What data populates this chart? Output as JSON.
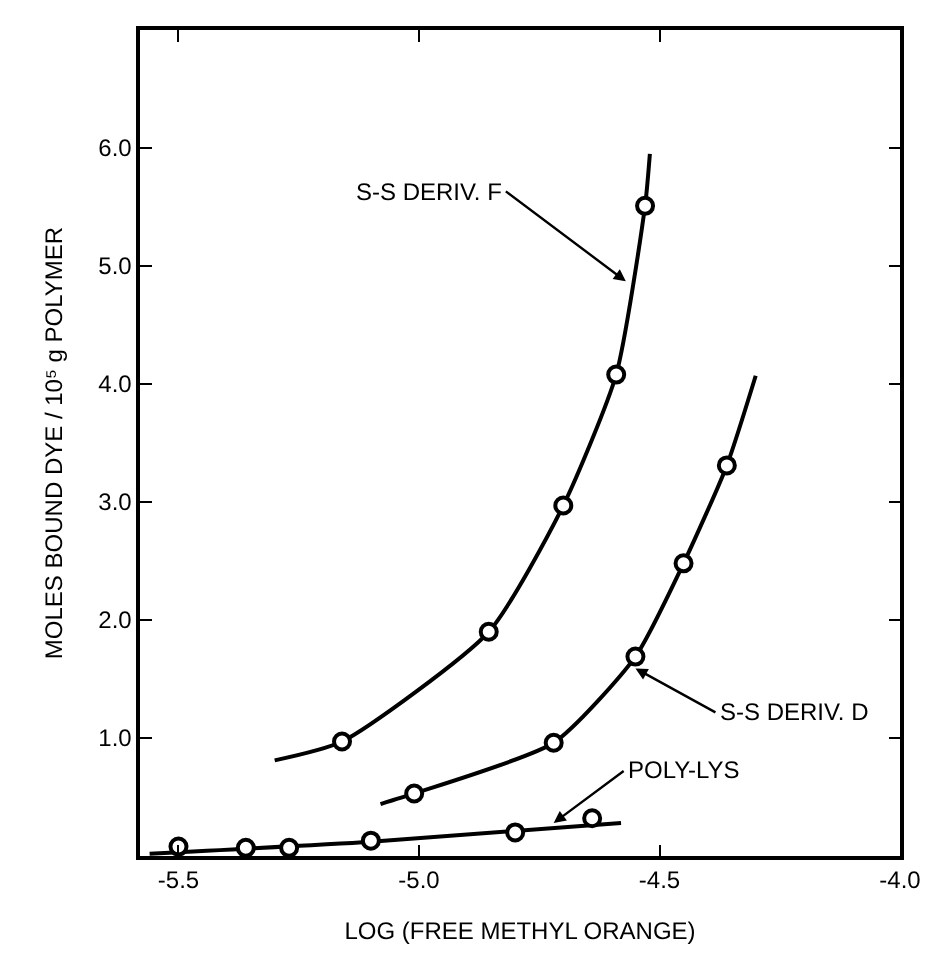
{
  "chart_data": {
    "type": "scatter",
    "xlabel": "LOG (FREE METHYL ORANGE)",
    "ylabel": "MOLES BOUND DYE / 10⁵ g POLYMER",
    "xlim": [
      -5.58,
      -4.0
    ],
    "xticks": [
      -5.5,
      {
        "value": -5.0,
        "label": "-5.0"
      },
      -4.5,
      {
        "value": -4.0,
        "label": "-4.0"
      }
    ],
    "ylim": [
      0,
      7.0
    ],
    "yticks": [
      {
        "value": 1,
        "label": "1.0"
      },
      {
        "value": 2,
        "label": "2.0"
      },
      {
        "value": 3,
        "label": "3.0"
      },
      {
        "value": 4,
        "label": "4.0"
      },
      {
        "value": 5,
        "label": "5.0"
      },
      {
        "value": 6,
        "label": "6.0"
      }
    ],
    "marker": "circle",
    "line_style": "solid",
    "series": [
      {
        "type": "line",
        "marker": "none",
        "color": "#000000",
        "x": [
          -5.3,
          -5.16,
          -4.855,
          -4.7,
          -4.59,
          -4.53,
          -4.52
        ],
        "values": [
          0.81,
          0.97,
          1.9,
          2.97,
          4.08,
          5.51,
          5.95
        ]
      },
      {
        "color": "#000000",
        "x": [
          -5.16,
          -4.855,
          -4.7,
          -4.59,
          -4.53
        ],
        "values": [
          0.97,
          1.9,
          2.97,
          4.08,
          5.51
        ]
      },
      {
        "type": "line",
        "marker": "none",
        "color": "#000000",
        "x": [
          -5.08,
          -5.01,
          -4.72,
          -4.55,
          -4.45,
          -4.36,
          -4.3
        ],
        "values": [
          0.44,
          0.53,
          0.96,
          1.69,
          2.48,
          3.31,
          4.07
        ]
      },
      {
        "color": "#000000",
        "x": [
          -5.01,
          -4.72,
          -4.55,
          -4.45,
          -4.36
        ],
        "values": [
          0.53,
          0.96,
          1.69,
          2.48,
          3.31
        ]
      },
      {
        "type": "line",
        "marker": "none",
        "color": "#000000",
        "x": [
          -5.56,
          -5.1,
          -4.58
        ],
        "values": [
          0.02,
          0.12,
          0.28
        ]
      },
      {
        "color": "#000000",
        "x": [
          -5.5,
          -5.36,
          -5.27,
          -5.1,
          -4.8,
          -4.64
        ],
        "values": [
          0.08,
          0.07,
          0.07,
          0.13,
          0.2,
          0.32
        ]
      }
    ],
    "annotations": [
      {
        "text": "S-S DERIV. F",
        "x": -4.57,
        "y": 4.87
      },
      {
        "text": "S-S DERIV. D",
        "x": -4.55,
        "y": 1.59
      },
      {
        "text": "POLY-LYS",
        "x": -4.72,
        "y": 0.28
      }
    ]
  }
}
